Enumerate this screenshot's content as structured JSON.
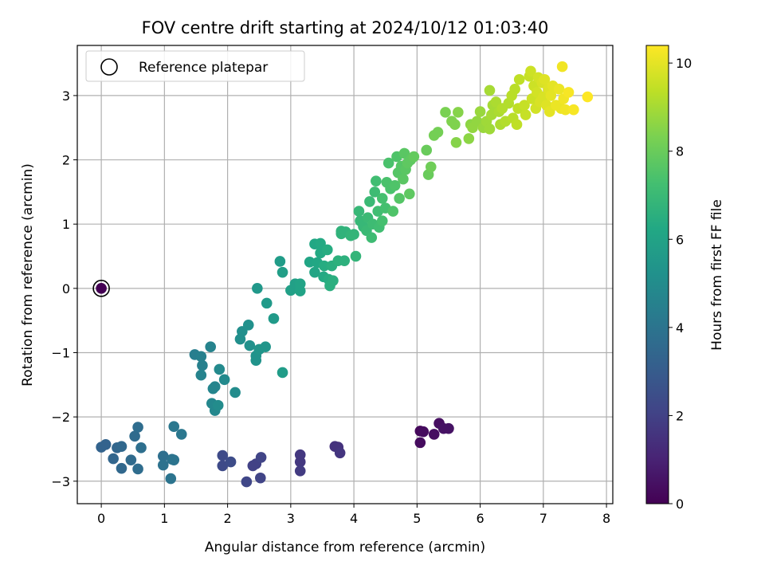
{
  "chart_data": {
    "type": "scatter",
    "title": "FOV centre drift starting at 2024/10/12 01:03:40",
    "xlabel": "Angular distance from reference (arcmin)",
    "ylabel": "Rotation from reference (arcmin)",
    "xlim": [
      -0.38,
      8.1
    ],
    "ylim": [
      -3.35,
      3.78
    ],
    "xticks": [
      0,
      1,
      2,
      3,
      4,
      5,
      6,
      7,
      8
    ],
    "yticks": [
      -3,
      -2,
      -1,
      0,
      1,
      2,
      3
    ],
    "xtick_labels": [
      "0",
      "1",
      "2",
      "3",
      "4",
      "5",
      "6",
      "7",
      "8"
    ],
    "ytick_labels": [
      "−3",
      "−2",
      "−1",
      "0",
      "1",
      "2",
      "3"
    ],
    "grid": true,
    "legend": {
      "position": "top-left",
      "entries": [
        {
          "label": "Reference platepar",
          "marker": "open-circle"
        }
      ]
    },
    "reference_point": {
      "x": 0.0,
      "y": 0.0,
      "t": 0.0
    },
    "colorbar": {
      "label": "Hours from first FF file",
      "range": [
        0,
        10.4
      ],
      "ticks": [
        0,
        2,
        4,
        6,
        8,
        10
      ],
      "tick_labels": [
        "0",
        "2",
        "4",
        "6",
        "8",
        "10"
      ],
      "colormap": "viridis"
    },
    "points": [
      {
        "x": 5.05,
        "y": -2.22,
        "t": 0.2
      },
      {
        "x": 5.1,
        "y": -2.23,
        "t": 0.3
      },
      {
        "x": 5.05,
        "y": -2.4,
        "t": 0.3
      },
      {
        "x": 5.27,
        "y": -2.27,
        "t": 0.4
      },
      {
        "x": 5.35,
        "y": -2.1,
        "t": 0.4
      },
      {
        "x": 5.42,
        "y": -2.18,
        "t": 0.5
      },
      {
        "x": 5.5,
        "y": -2.18,
        "t": 0.5
      },
      {
        "x": 3.7,
        "y": -2.46,
        "t": 1.5
      },
      {
        "x": 3.75,
        "y": -2.47,
        "t": 1.5
      },
      {
        "x": 3.78,
        "y": -2.56,
        "t": 1.6
      },
      {
        "x": 3.15,
        "y": -2.59,
        "t": 1.7
      },
      {
        "x": 3.15,
        "y": -2.7,
        "t": 1.7
      },
      {
        "x": 3.15,
        "y": -2.84,
        "t": 1.8
      },
      {
        "x": 2.45,
        "y": -2.73,
        "t": 2.0
      },
      {
        "x": 2.4,
        "y": -2.76,
        "t": 2.0
      },
      {
        "x": 2.53,
        "y": -2.63,
        "t": 2.1
      },
      {
        "x": 2.52,
        "y": -2.95,
        "t": 2.1
      },
      {
        "x": 2.3,
        "y": -3.01,
        "t": 2.2
      },
      {
        "x": 1.92,
        "y": -2.6,
        "t": 2.3
      },
      {
        "x": 1.92,
        "y": -2.76,
        "t": 2.3
      },
      {
        "x": 2.05,
        "y": -2.7,
        "t": 2.4
      },
      {
        "x": 0.0,
        "y": -2.47,
        "t": 3.3
      },
      {
        "x": 0.07,
        "y": -2.43,
        "t": 3.3
      },
      {
        "x": 0.19,
        "y": -2.65,
        "t": 3.4
      },
      {
        "x": 0.25,
        "y": -2.48,
        "t": 3.4
      },
      {
        "x": 0.32,
        "y": -2.46,
        "t": 3.5
      },
      {
        "x": 0.32,
        "y": -2.8,
        "t": 3.5
      },
      {
        "x": 0.47,
        "y": -2.67,
        "t": 3.6
      },
      {
        "x": 0.53,
        "y": -2.3,
        "t": 3.6
      },
      {
        "x": 0.58,
        "y": -2.16,
        "t": 3.7
      },
      {
        "x": 0.58,
        "y": -2.81,
        "t": 3.7
      },
      {
        "x": 0.63,
        "y": -2.48,
        "t": 3.8
      },
      {
        "x": 0.98,
        "y": -2.61,
        "t": 3.8
      },
      {
        "x": 0.98,
        "y": -2.75,
        "t": 3.9
      },
      {
        "x": 1.12,
        "y": -2.66,
        "t": 3.9
      },
      {
        "x": 1.15,
        "y": -2.67,
        "t": 4.0
      },
      {
        "x": 1.1,
        "y": -2.96,
        "t": 4.0
      },
      {
        "x": 1.15,
        "y": -2.15,
        "t": 4.1
      },
      {
        "x": 1.27,
        "y": -2.27,
        "t": 4.1
      },
      {
        "x": 1.48,
        "y": -1.03,
        "t": 4.4
      },
      {
        "x": 1.58,
        "y": -1.06,
        "t": 4.5
      },
      {
        "x": 1.6,
        "y": -1.2,
        "t": 4.5
      },
      {
        "x": 1.58,
        "y": -1.35,
        "t": 4.6
      },
      {
        "x": 1.73,
        "y": -0.91,
        "t": 4.6
      },
      {
        "x": 1.8,
        "y": -1.53,
        "t": 4.7
      },
      {
        "x": 1.77,
        "y": -1.56,
        "t": 4.7
      },
      {
        "x": 1.75,
        "y": -1.79,
        "t": 4.8
      },
      {
        "x": 1.8,
        "y": -1.9,
        "t": 4.8
      },
      {
        "x": 1.87,
        "y": -1.26,
        "t": 4.9
      },
      {
        "x": 1.95,
        "y": -1.42,
        "t": 4.9
      },
      {
        "x": 1.85,
        "y": -1.82,
        "t": 5.0
      },
      {
        "x": 2.12,
        "y": -1.62,
        "t": 5.0
      },
      {
        "x": 2.2,
        "y": -0.79,
        "t": 5.1
      },
      {
        "x": 2.23,
        "y": -0.67,
        "t": 5.1
      },
      {
        "x": 2.33,
        "y": -0.57,
        "t": 5.2
      },
      {
        "x": 2.35,
        "y": -0.89,
        "t": 5.2
      },
      {
        "x": 2.45,
        "y": -1.05,
        "t": 5.3
      },
      {
        "x": 2.45,
        "y": -1.12,
        "t": 5.3
      },
      {
        "x": 2.5,
        "y": -0.95,
        "t": 5.4
      },
      {
        "x": 2.6,
        "y": -0.91,
        "t": 5.4
      },
      {
        "x": 2.47,
        "y": 0.0,
        "t": 5.5
      },
      {
        "x": 2.62,
        "y": -0.23,
        "t": 5.6
      },
      {
        "x": 2.73,
        "y": -0.47,
        "t": 5.6
      },
      {
        "x": 2.87,
        "y": -1.31,
        "t": 5.7
      },
      {
        "x": 2.83,
        "y": 0.42,
        "t": 5.7
      },
      {
        "x": 2.87,
        "y": 0.25,
        "t": 5.8
      },
      {
        "x": 3.0,
        "y": -0.03,
        "t": 5.9
      },
      {
        "x": 3.07,
        "y": 0.07,
        "t": 5.9
      },
      {
        "x": 3.15,
        "y": -0.04,
        "t": 6.0
      },
      {
        "x": 3.15,
        "y": 0.07,
        "t": 6.0
      },
      {
        "x": 3.3,
        "y": 0.41,
        "t": 6.1
      },
      {
        "x": 3.38,
        "y": 0.25,
        "t": 6.1
      },
      {
        "x": 3.38,
        "y": 0.69,
        "t": 6.2
      },
      {
        "x": 3.42,
        "y": 0.4,
        "t": 6.2
      },
      {
        "x": 3.47,
        "y": 0.55,
        "t": 6.3
      },
      {
        "x": 3.47,
        "y": 0.7,
        "t": 6.3
      },
      {
        "x": 3.52,
        "y": 0.18,
        "t": 6.3
      },
      {
        "x": 3.53,
        "y": 0.35,
        "t": 6.4
      },
      {
        "x": 3.58,
        "y": 0.6,
        "t": 6.4
      },
      {
        "x": 3.6,
        "y": 0.14,
        "t": 6.4
      },
      {
        "x": 3.62,
        "y": 0.04,
        "t": 6.5
      },
      {
        "x": 3.65,
        "y": 0.35,
        "t": 6.5
      },
      {
        "x": 3.67,
        "y": 0.12,
        "t": 6.5
      },
      {
        "x": 3.75,
        "y": 0.43,
        "t": 6.6
      },
      {
        "x": 3.85,
        "y": 0.43,
        "t": 6.6
      },
      {
        "x": 3.8,
        "y": 0.85,
        "t": 6.7
      },
      {
        "x": 3.8,
        "y": 0.89,
        "t": 6.7
      },
      {
        "x": 3.87,
        "y": 0.88,
        "t": 6.7
      },
      {
        "x": 3.95,
        "y": 0.82,
        "t": 6.8
      },
      {
        "x": 4.0,
        "y": 0.84,
        "t": 6.8
      },
      {
        "x": 4.03,
        "y": 0.5,
        "t": 6.8
      },
      {
        "x": 4.08,
        "y": 1.2,
        "t": 6.9
      },
      {
        "x": 4.1,
        "y": 1.05,
        "t": 6.9
      },
      {
        "x": 4.15,
        "y": 0.96,
        "t": 6.9
      },
      {
        "x": 4.2,
        "y": 0.9,
        "t": 7.0
      },
      {
        "x": 4.22,
        "y": 1.1,
        "t": 7.0
      },
      {
        "x": 4.25,
        "y": 1.35,
        "t": 7.0
      },
      {
        "x": 4.28,
        "y": 0.79,
        "t": 7.1
      },
      {
        "x": 4.3,
        "y": 1.0,
        "t": 7.1
      },
      {
        "x": 4.33,
        "y": 1.5,
        "t": 7.1
      },
      {
        "x": 4.35,
        "y": 1.67,
        "t": 7.2
      },
      {
        "x": 4.38,
        "y": 1.2,
        "t": 7.2
      },
      {
        "x": 4.4,
        "y": 0.95,
        "t": 7.2
      },
      {
        "x": 4.45,
        "y": 1.05,
        "t": 7.3
      },
      {
        "x": 4.45,
        "y": 1.4,
        "t": 7.3
      },
      {
        "x": 4.5,
        "y": 1.25,
        "t": 7.3
      },
      {
        "x": 4.52,
        "y": 1.65,
        "t": 7.4
      },
      {
        "x": 4.55,
        "y": 1.95,
        "t": 7.4
      },
      {
        "x": 4.58,
        "y": 1.55,
        "t": 7.4
      },
      {
        "x": 4.62,
        "y": 1.2,
        "t": 7.5
      },
      {
        "x": 4.65,
        "y": 1.6,
        "t": 7.5
      },
      {
        "x": 4.68,
        "y": 2.05,
        "t": 7.5
      },
      {
        "x": 4.7,
        "y": 1.8,
        "t": 7.6
      },
      {
        "x": 4.72,
        "y": 1.4,
        "t": 7.6
      },
      {
        "x": 4.75,
        "y": 1.9,
        "t": 7.6
      },
      {
        "x": 4.78,
        "y": 1.7,
        "t": 7.7
      },
      {
        "x": 4.8,
        "y": 2.1,
        "t": 7.7
      },
      {
        "x": 4.82,
        "y": 1.85,
        "t": 7.7
      },
      {
        "x": 4.85,
        "y": 1.95,
        "t": 7.8
      },
      {
        "x": 4.88,
        "y": 1.47,
        "t": 7.8
      },
      {
        "x": 4.9,
        "y": 2.0,
        "t": 7.8
      },
      {
        "x": 4.95,
        "y": 2.05,
        "t": 7.9
      },
      {
        "x": 5.15,
        "y": 2.15,
        "t": 8.0
      },
      {
        "x": 5.18,
        "y": 1.77,
        "t": 8.0
      },
      {
        "x": 5.22,
        "y": 1.89,
        "t": 8.1
      },
      {
        "x": 5.27,
        "y": 2.38,
        "t": 8.2
      },
      {
        "x": 5.33,
        "y": 2.43,
        "t": 8.2
      },
      {
        "x": 5.45,
        "y": 2.74,
        "t": 8.3
      },
      {
        "x": 5.55,
        "y": 2.6,
        "t": 8.4
      },
      {
        "x": 5.6,
        "y": 2.55,
        "t": 8.4
      },
      {
        "x": 5.62,
        "y": 2.27,
        "t": 8.5
      },
      {
        "x": 5.65,
        "y": 2.74,
        "t": 8.5
      },
      {
        "x": 5.82,
        "y": 2.33,
        "t": 8.6
      },
      {
        "x": 5.85,
        "y": 2.55,
        "t": 8.6
      },
      {
        "x": 5.88,
        "y": 2.5,
        "t": 8.7
      },
      {
        "x": 5.95,
        "y": 2.6,
        "t": 8.7
      },
      {
        "x": 6.0,
        "y": 2.75,
        "t": 8.8
      },
      {
        "x": 6.05,
        "y": 2.5,
        "t": 8.8
      },
      {
        "x": 6.1,
        "y": 2.6,
        "t": 8.9
      },
      {
        "x": 6.15,
        "y": 2.48,
        "t": 8.9
      },
      {
        "x": 6.15,
        "y": 3.08,
        "t": 9.0
      },
      {
        "x": 6.18,
        "y": 2.7,
        "t": 9.0
      },
      {
        "x": 6.2,
        "y": 2.85,
        "t": 9.0
      },
      {
        "x": 6.25,
        "y": 2.9,
        "t": 9.1
      },
      {
        "x": 6.3,
        "y": 2.75,
        "t": 9.1
      },
      {
        "x": 6.32,
        "y": 2.55,
        "t": 9.1
      },
      {
        "x": 6.35,
        "y": 2.8,
        "t": 9.2
      },
      {
        "x": 6.4,
        "y": 2.6,
        "t": 9.2
      },
      {
        "x": 6.45,
        "y": 2.88,
        "t": 9.2
      },
      {
        "x": 6.5,
        "y": 3.0,
        "t": 9.3
      },
      {
        "x": 6.52,
        "y": 2.65,
        "t": 9.3
      },
      {
        "x": 6.55,
        "y": 3.1,
        "t": 9.3
      },
      {
        "x": 6.58,
        "y": 2.55,
        "t": 9.4
      },
      {
        "x": 6.6,
        "y": 2.8,
        "t": 9.4
      },
      {
        "x": 6.62,
        "y": 3.25,
        "t": 9.4
      },
      {
        "x": 6.7,
        "y": 2.85,
        "t": 9.5
      },
      {
        "x": 6.72,
        "y": 2.7,
        "t": 9.5
      },
      {
        "x": 6.78,
        "y": 3.3,
        "t": 9.5
      },
      {
        "x": 6.8,
        "y": 3.38,
        "t": 9.6
      },
      {
        "x": 6.82,
        "y": 2.95,
        "t": 9.6
      },
      {
        "x": 6.85,
        "y": 3.15,
        "t": 9.6
      },
      {
        "x": 6.88,
        "y": 2.8,
        "t": 9.7
      },
      {
        "x": 6.9,
        "y": 3.05,
        "t": 9.7
      },
      {
        "x": 6.92,
        "y": 3.28,
        "t": 9.7
      },
      {
        "x": 6.95,
        "y": 2.9,
        "t": 9.8
      },
      {
        "x": 6.98,
        "y": 3.2,
        "t": 9.8
      },
      {
        "x": 7.0,
        "y": 2.98,
        "t": 9.8
      },
      {
        "x": 7.02,
        "y": 3.25,
        "t": 9.9
      },
      {
        "x": 7.05,
        "y": 2.85,
        "t": 9.9
      },
      {
        "x": 7.08,
        "y": 3.1,
        "t": 9.9
      },
      {
        "x": 7.1,
        "y": 2.75,
        "t": 10.0
      },
      {
        "x": 7.12,
        "y": 3.0,
        "t": 10.0
      },
      {
        "x": 7.15,
        "y": 3.15,
        "t": 10.0
      },
      {
        "x": 7.2,
        "y": 2.85,
        "t": 10.1
      },
      {
        "x": 7.25,
        "y": 3.1,
        "t": 10.1
      },
      {
        "x": 7.28,
        "y": 2.8,
        "t": 10.1
      },
      {
        "x": 7.3,
        "y": 3.45,
        "t": 10.2
      },
      {
        "x": 7.32,
        "y": 2.95,
        "t": 10.2
      },
      {
        "x": 7.35,
        "y": 2.78,
        "t": 10.2
      },
      {
        "x": 7.4,
        "y": 3.05,
        "t": 10.3
      },
      {
        "x": 7.48,
        "y": 2.78,
        "t": 10.3
      },
      {
        "x": 7.7,
        "y": 2.98,
        "t": 10.4
      },
      {
        "x": 0.0,
        "y": 0.0,
        "t": 0.0
      }
    ]
  }
}
